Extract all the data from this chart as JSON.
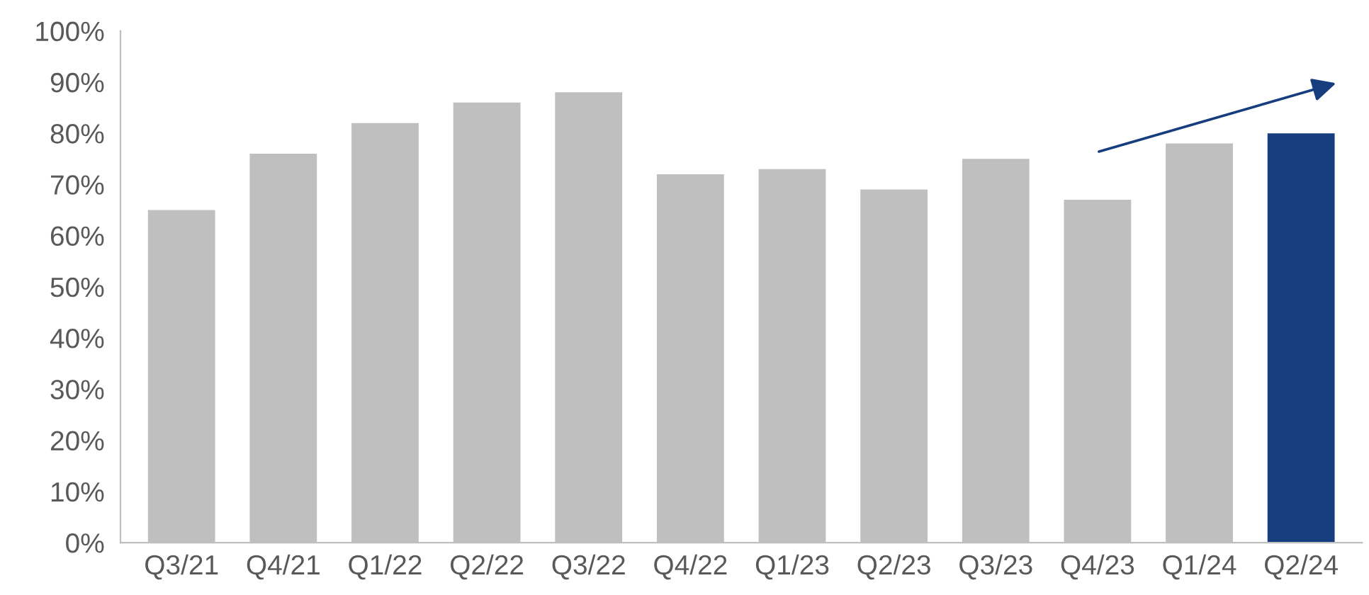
{
  "chart_data": {
    "type": "bar",
    "categories": [
      "Q3/21",
      "Q4/21",
      "Q1/22",
      "Q2/22",
      "Q3/22",
      "Q4/22",
      "Q1/23",
      "Q2/23",
      "Q3/23",
      "Q4/23",
      "Q1/24",
      "Q2/24"
    ],
    "values": [
      65,
      76,
      82,
      86,
      88,
      72,
      73,
      69,
      75,
      67,
      78,
      80
    ],
    "colors": [
      "#bfbfbf",
      "#bfbfbf",
      "#bfbfbf",
      "#bfbfbf",
      "#bfbfbf",
      "#bfbfbf",
      "#bfbfbf",
      "#bfbfbf",
      "#bfbfbf",
      "#bfbfbf",
      "#bfbfbf",
      "#163e7f"
    ],
    "ylim": [
      0,
      100
    ],
    "yticks": [
      {
        "value": 0,
        "label": "0%"
      },
      {
        "value": 10,
        "label": "10%"
      },
      {
        "value": 20,
        "label": "20%"
      },
      {
        "value": 30,
        "label": "30%"
      },
      {
        "value": 40,
        "label": "40%"
      },
      {
        "value": 50,
        "label": "50%"
      },
      {
        "value": 60,
        "label": "60%"
      },
      {
        "value": 70,
        "label": "70%"
      },
      {
        "value": 80,
        "label": "80%"
      },
      {
        "value": 90,
        "label": "90%"
      },
      {
        "value": 100,
        "label": "100%"
      }
    ],
    "grid": false
  }
}
